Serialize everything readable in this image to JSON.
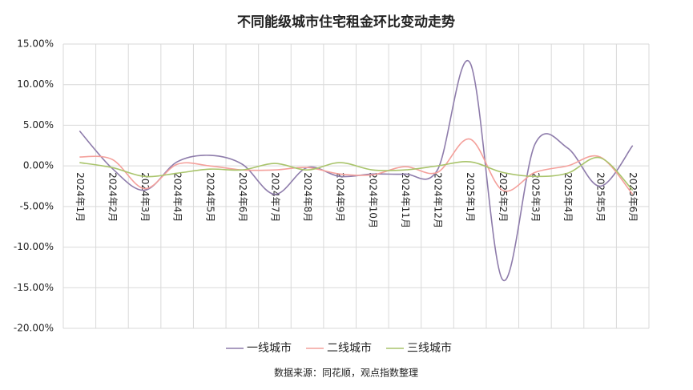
{
  "chart_data": {
    "type": "line",
    "title": "不同能级城市住宅租金环比变动走势",
    "source": "数据来源：同花顺，观点指数整理",
    "categories": [
      "2024年1月",
      "2024年2月",
      "2024年3月",
      "2024年4月",
      "2024年5月",
      "2024年6月",
      "2024年7月",
      "2024年8月",
      "2024年9月",
      "2024年10月",
      "2024年11月",
      "2024年12月",
      "2025年1月",
      "2025年2月",
      "2025年3月",
      "2025年4月",
      "2025年5月",
      "2025年6月"
    ],
    "series": [
      {
        "name": "一线城市",
        "color": "#8e7cab",
        "values": [
          4.3,
          -0.3,
          -3.0,
          0.5,
          1.3,
          0.2,
          -3.5,
          -0.2,
          -1.3,
          -1.0,
          -1.0,
          -0.5,
          12.7,
          -14.0,
          2.7,
          2.2,
          -2.5,
          2.5
        ]
      },
      {
        "name": "二线城市",
        "color": "#f4a09b",
        "values": [
          1.1,
          0.8,
          -2.8,
          0.2,
          0.0,
          -0.5,
          -0.5,
          -0.2,
          -1.0,
          -1.1,
          -0.1,
          -0.8,
          3.3,
          -3.0,
          -0.8,
          0.0,
          1.1,
          -3.5
        ]
      },
      {
        "name": "三线城市",
        "color": "#a9c46b",
        "values": [
          0.4,
          -0.2,
          -1.3,
          -0.9,
          -0.4,
          -0.5,
          0.3,
          -0.5,
          0.4,
          -0.5,
          -0.5,
          0.0,
          0.5,
          -0.8,
          -1.3,
          -0.9,
          1.0,
          -3.0
        ]
      }
    ],
    "ylim": [
      -20,
      15
    ],
    "yticks": [
      {
        "value": -20,
        "label": "-20.00%"
      },
      {
        "value": -15,
        "label": "-15.00%"
      },
      {
        "value": -10,
        "label": "-10.00%"
      },
      {
        "value": -5,
        "label": "-5.00%"
      },
      {
        "value": 0,
        "label": "0.00%"
      },
      {
        "value": 5,
        "label": "5.00%"
      },
      {
        "value": 10,
        "label": "10.00%"
      },
      {
        "value": 15,
        "label": "15.00%"
      }
    ],
    "grid": true,
    "smooth": true,
    "legend": "bottom"
  }
}
